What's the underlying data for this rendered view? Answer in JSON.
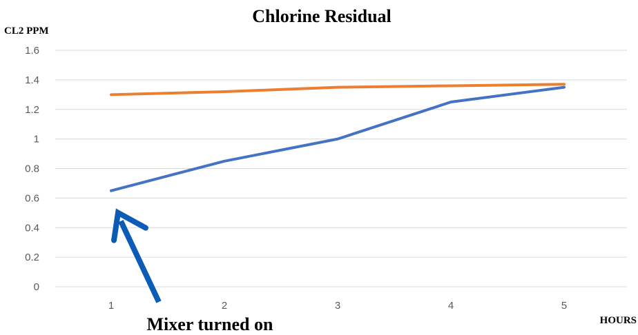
{
  "chart_data": {
    "type": "line",
    "title": "Chlorine Residual",
    "ylabel": "CL2 PPM",
    "xlabel": "HOURS",
    "categories": [
      "1",
      "2",
      "3",
      "4",
      "5"
    ],
    "yticks": [
      "0",
      "0.2",
      "0.4",
      "0.6",
      "0.8",
      "1",
      "1.2",
      "1.4",
      "1.6"
    ],
    "ylim": [
      0,
      1.6
    ],
    "grid": true,
    "series": [
      {
        "color": "#4472c4",
        "values": [
          0.65,
          0.85,
          1.0,
          1.25,
          1.35
        ]
      },
      {
        "color": "#ed7d31",
        "values": [
          1.3,
          1.32,
          1.35,
          1.36,
          1.37
        ]
      }
    ],
    "annotation": {
      "text": "Mixer turned on",
      "color": "#0b5cb5",
      "target": {
        "category": "1",
        "series": 0
      }
    }
  }
}
